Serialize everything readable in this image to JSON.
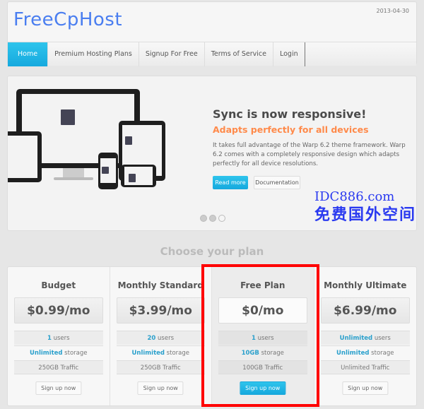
{
  "header": {
    "logo": "FreeCpHost",
    "date": "2013-04-30"
  },
  "nav": {
    "items": [
      {
        "label": "Home",
        "active": true
      },
      {
        "label": "Premium Hosting Plans"
      },
      {
        "label": "Signup For Free"
      },
      {
        "label": "Terms of Service"
      },
      {
        "label": "Login"
      }
    ]
  },
  "slide": {
    "title": "Sync is now responsive!",
    "subtitle": "Adapts perfectly for all devices",
    "text": "It takes full advantage of the Warp 6.2 theme framework. Warp 6.2 comes with a completely responsive design which adapts perfectly for all device resolutions.",
    "read_more": "Read more",
    "documentation": "Documentation",
    "active_dot": 2
  },
  "pricing": {
    "heading": "Choose your plan",
    "plans": [
      {
        "name": "Budget",
        "price": "$0.99/mo",
        "users_val": "1",
        "users_txt": " users",
        "storage_val": "Unlimited",
        "storage_txt": " storage",
        "traffic": "250GB Traffic",
        "button": "Sign up now"
      },
      {
        "name": "Monthly Standard",
        "price": "$3.99/mo",
        "users_val": "20",
        "users_txt": " users",
        "storage_val": "Unlimited",
        "storage_txt": " storage",
        "traffic": "250GB Traffic",
        "button": "Sign up now"
      },
      {
        "name": "Free Plan",
        "price": "$0/mo",
        "users_val": "1",
        "users_txt": " users",
        "storage_val": "10GB",
        "storage_txt": " storage",
        "traffic": "100GB Traffic",
        "button": "Sign up now",
        "highlighted": true
      },
      {
        "name": "Monthly Ultimate",
        "price": "$6.99/mo",
        "users_val": "Unlimited",
        "users_txt": " users",
        "storage_val": "Unlimited",
        "storage_txt": " storage",
        "traffic": "Unlimited Traffic",
        "button": "Sign up now"
      }
    ]
  },
  "watermark": {
    "line1": "IDC886.com",
    "line2": "免费国外空间"
  },
  "colors": {
    "accent": "#1eb5e6",
    "orange": "#ff8a4a",
    "logo": "#4a7ef0",
    "highlight_frame": "#ff0000"
  }
}
